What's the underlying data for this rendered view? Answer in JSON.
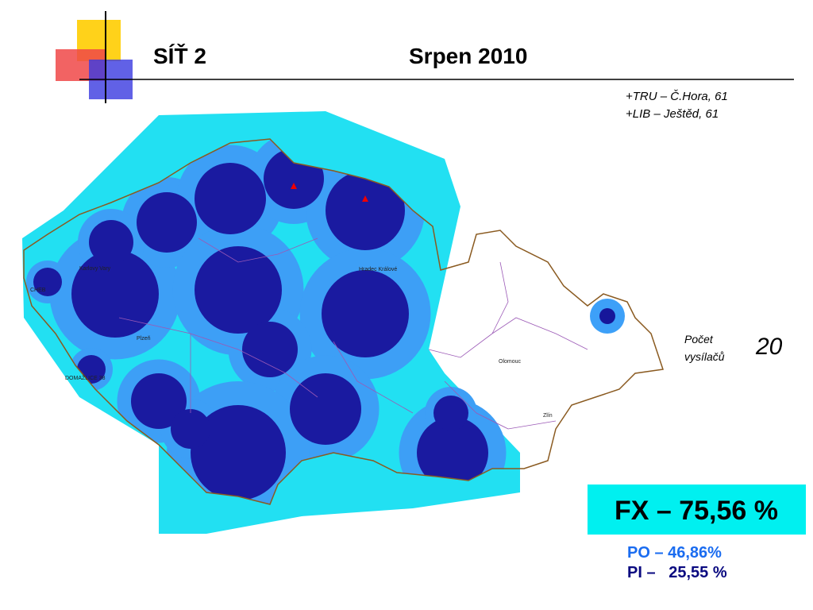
{
  "header": {
    "title": "SÍŤ 2",
    "date": "Srpen 2010"
  },
  "notes": [
    "+TRU – Č.Hora, 61",
    "+LIB – Ještěd, 61"
  ],
  "transmitters": {
    "label": [
      "Počet",
      "vysílačů"
    ],
    "count": 20
  },
  "coverage": {
    "fx": "FX – 75,56 %",
    "po": "PO – 46,86%",
    "pi": "PI –   25,55 %"
  },
  "map_labels": [
    "CHEB",
    "Karlovy Vary",
    "Plzeň",
    "Hradec Králové",
    "Olomouc",
    "Zlín",
    "DOMAŽLICE 38"
  ]
}
